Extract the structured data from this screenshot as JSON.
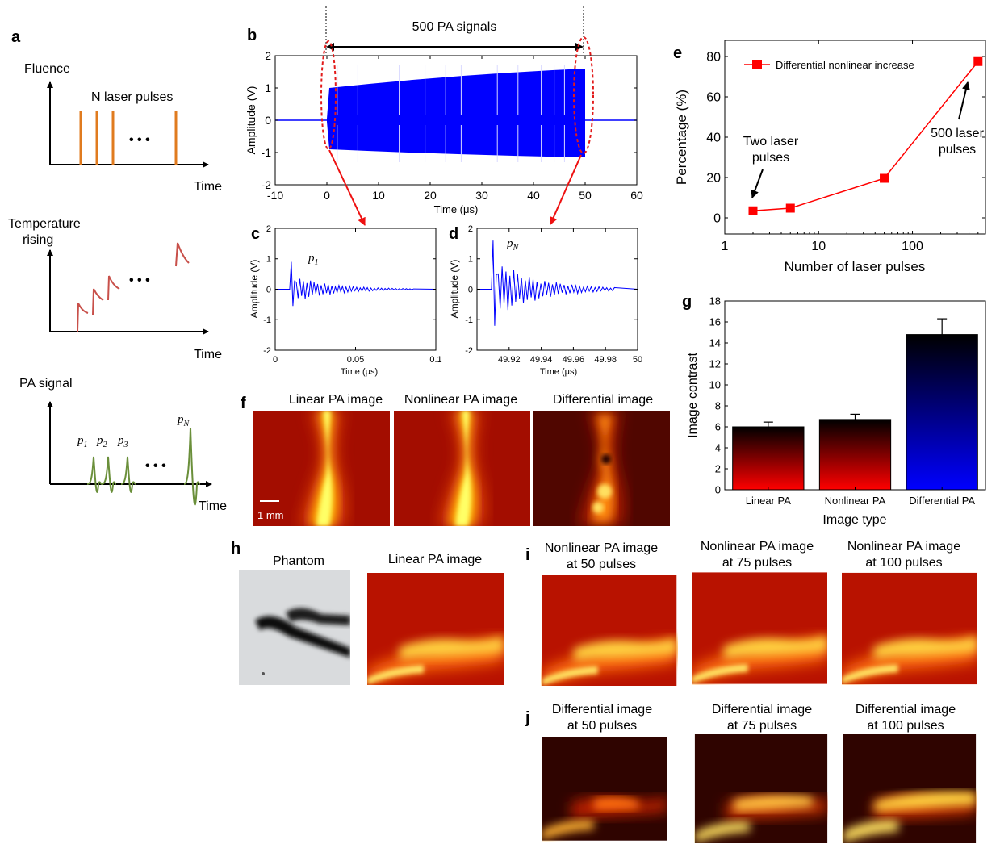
{
  "panels": {
    "a": {
      "letter": "a",
      "fluence": {
        "ylabel": "Fluence",
        "xlabel": "Time",
        "annotation": "N laser pulses",
        "dots": "• • •",
        "color": "#e07b1f"
      },
      "temperature": {
        "ylabel_line1": "Temperature",
        "ylabel_line2": "rising",
        "xlabel": "Time",
        "dots": "• • •",
        "color": "#c8504a"
      },
      "pa": {
        "ylabel": "PA signal",
        "xlabel": "Time",
        "dots": "• • •",
        "color": "#6a8f3a",
        "labels": [
          {
            "base": "p",
            "sub": "1"
          },
          {
            "base": "p",
            "sub": "2"
          },
          {
            "base": "p",
            "sub": "3"
          },
          {
            "base": "p",
            "sub": "N"
          }
        ]
      }
    },
    "b": {
      "letter": "b",
      "bracket_label": "500 PA signals",
      "chart_data": {
        "type": "line",
        "xlabel": "Time (μs)",
        "ylabel": "Amplitude (V)",
        "xlim": [
          -10,
          60
        ],
        "ylim": [
          -2,
          2
        ],
        "xticks": [
          -10,
          0,
          10,
          20,
          30,
          40,
          50,
          60
        ],
        "yticks": [
          -2,
          -1,
          0,
          1,
          2
        ],
        "signal_window": [
          0,
          50
        ],
        "envelope_start": [
          1.0,
          -0.9
        ],
        "envelope_end": [
          1.6,
          -1.15
        ],
        "color": "#0000ff"
      }
    },
    "c": {
      "letter": "c",
      "series_label": {
        "base": "p",
        "sub": "1"
      },
      "chart_data": {
        "type": "line",
        "xlabel": "Time (μs)",
        "ylabel": "Amplitude (V)",
        "xlim": [
          0,
          0.1
        ],
        "ylim": [
          -2,
          2
        ],
        "xticks": [
          "0",
          "0.05",
          "0.1"
        ],
        "xtick_values": [
          0,
          0.05,
          0.1
        ],
        "yticks": [
          -2,
          -1,
          0,
          1,
          2
        ],
        "peak": 0.9,
        "trough": -0.55,
        "color": "#0000ff"
      }
    },
    "d": {
      "letter": "d",
      "series_label": {
        "base": "p",
        "sub": "N"
      },
      "chart_data": {
        "type": "line",
        "xlabel": "Time (μs)",
        "ylabel": "Amplitude (V)",
        "xlim": [
          49.9,
          50
        ],
        "ylim": [
          -2,
          2
        ],
        "xticks": [
          "49.92",
          "49.94",
          "49.96",
          "49.98",
          "50"
        ],
        "xtick_values": [
          49.92,
          49.94,
          49.96,
          49.98,
          50
        ],
        "yticks": [
          -2,
          -1,
          0,
          1,
          2
        ],
        "peak": 1.6,
        "trough": -1.2,
        "color": "#0000ff"
      }
    },
    "e": {
      "letter": "e",
      "chart_data": {
        "type": "line",
        "xlabel": "Number of laser pulses",
        "ylabel": "Percentage (%)",
        "xscale": "log",
        "xlim": [
          1,
          600
        ],
        "ylim": [
          -8,
          88
        ],
        "xticks": [
          "1",
          "10",
          "100"
        ],
        "xtick_values": [
          1,
          10,
          100
        ],
        "yticks": [
          0,
          20,
          40,
          60,
          80
        ],
        "series": [
          {
            "name": "Differential nonlinear increase",
            "x": [
              2,
              5,
              50,
              500
            ],
            "y": [
              3.5,
              4.8,
              19.6,
              77.5
            ]
          }
        ],
        "color": "#ff0000",
        "legend": "top",
        "annotations": [
          {
            "line1": "Two laser",
            "line2": "pulses"
          },
          {
            "line1": "500 laser",
            "line2": "pulses"
          }
        ]
      }
    },
    "f": {
      "letter": "f",
      "titles": [
        "Linear PA image",
        "Nonlinear PA image",
        "Differential image"
      ],
      "scalebar": "1 mm"
    },
    "g": {
      "letter": "g",
      "chart_data": {
        "type": "bar",
        "xlabel": "Image type",
        "ylabel": "Image contrast",
        "categories": [
          "Linear PA",
          "Nonlinear PA",
          "Differential PA"
        ],
        "values": [
          6.0,
          6.7,
          14.8
        ],
        "errors": [
          0.45,
          0.5,
          1.5
        ],
        "ylim": [
          0,
          18
        ],
        "yticks": [
          0,
          2,
          4,
          6,
          8,
          10,
          12,
          14,
          16,
          18
        ],
        "colors": [
          "#ff0000",
          "#ff0000",
          "#0000ff"
        ]
      }
    },
    "h": {
      "letter": "h",
      "titles": [
        "Phantom",
        "Linear PA image"
      ]
    },
    "i": {
      "letter": "i",
      "titles": [
        {
          "line1": "Nonlinear PA image",
          "line2": "at 50 pulses"
        },
        {
          "line1": "Nonlinear PA image",
          "line2": "at 75 pulses"
        },
        {
          "line1": "Nonlinear PA image",
          "line2": "at 100 pulses"
        }
      ]
    },
    "j": {
      "letter": "j",
      "titles": [
        {
          "line1": "Differential image",
          "line2": "at 50 pulses"
        },
        {
          "line1": "Differential image",
          "line2": "at 75 pulses"
        },
        {
          "line1": "Differential image",
          "line2": "at 100 pulses"
        }
      ]
    }
  }
}
